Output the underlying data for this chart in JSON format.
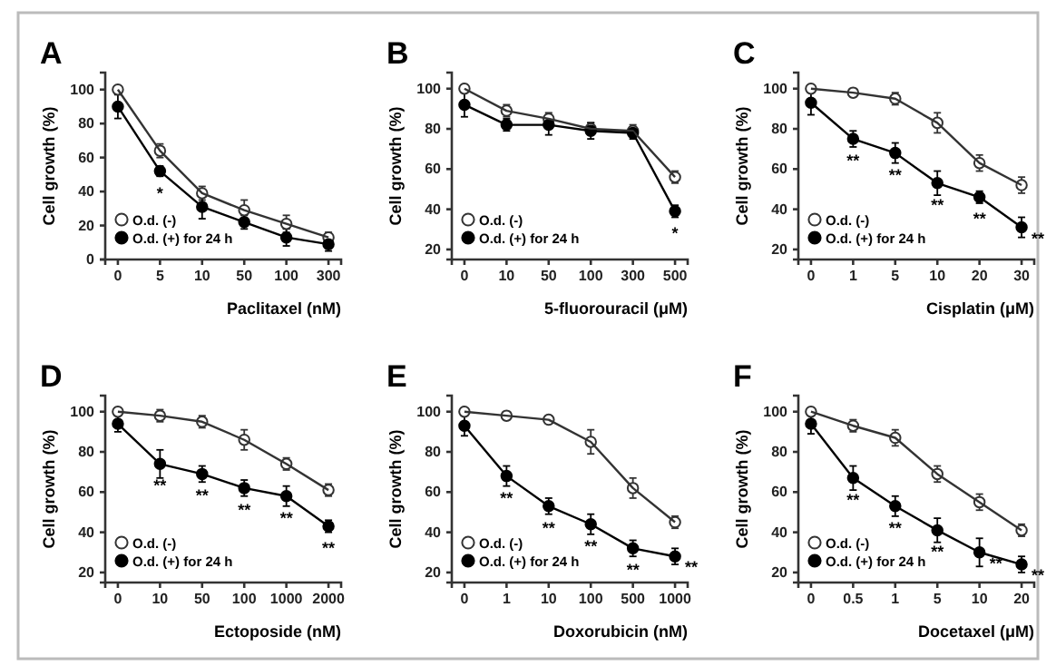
{
  "chart_data": [
    {
      "type": "line",
      "title": "A",
      "ylabel": "Cell growth (%)",
      "xlabel": "Paclitaxel (nM)",
      "categories": [
        "0",
        "5",
        "10",
        "50",
        "100",
        "300"
      ],
      "ylim": [
        0,
        110
      ],
      "yticks": [
        0,
        20,
        40,
        60,
        80,
        100
      ],
      "legend": "bottom left",
      "marker": "circle",
      "line_style": "solid",
      "grid": false,
      "series": [
        {
          "name": "O.d. (-)",
          "color": "#333333",
          "values": [
            100,
            64,
            39,
            29,
            21,
            13
          ],
          "errors": [
            2,
            4,
            4,
            6,
            5,
            3
          ]
        },
        {
          "name": "O.d. (+) for 24 h",
          "color": "#000000",
          "values": [
            90,
            52,
            31,
            22,
            13,
            9
          ],
          "errors": [
            7,
            3,
            7,
            4,
            5,
            4
          ]
        }
      ],
      "annotations": [
        {
          "text": "*",
          "x": "5",
          "y": 52
        }
      ]
    },
    {
      "type": "line",
      "title": "B",
      "ylabel": "Cell growth (%)",
      "xlabel": "5-fluorouracil (μM)",
      "categories": [
        "0",
        "10",
        "50",
        "100",
        "300",
        "500"
      ],
      "ylim": [
        15,
        108
      ],
      "yticks": [
        20,
        40,
        60,
        80,
        100
      ],
      "legend": "bottom left",
      "marker": "circle",
      "line_style": "solid",
      "grid": false,
      "series": [
        {
          "name": "O.d. (-)",
          "color": "#333333",
          "values": [
            100,
            89,
            85,
            80,
            79,
            56
          ],
          "errors": [
            2,
            3,
            3,
            3,
            3,
            3
          ]
        },
        {
          "name": "O.d. (+) for 24 h",
          "color": "#000000",
          "values": [
            92,
            82,
            82,
            79,
            78,
            39
          ],
          "errors": [
            6,
            3,
            5,
            4,
            3,
            3
          ]
        }
      ],
      "annotations": [
        {
          "text": "*",
          "x": "500",
          "y": 39
        }
      ]
    },
    {
      "type": "line",
      "title": "C",
      "ylabel": "Cell growth (%)",
      "xlabel": "Cisplatin (μM)",
      "categories": [
        "0",
        "1",
        "5",
        "10",
        "20",
        "30"
      ],
      "ylim": [
        15,
        108
      ],
      "yticks": [
        20,
        40,
        60,
        80,
        100
      ],
      "legend": "bottom left",
      "marker": "circle",
      "line_style": "solid",
      "grid": false,
      "series": [
        {
          "name": "O.d. (-)",
          "color": "#333333",
          "values": [
            100,
            98,
            95,
            83,
            63,
            52
          ],
          "errors": [
            1,
            2,
            3,
            5,
            4,
            4
          ]
        },
        {
          "name": "O.d. (+) for 24 h",
          "color": "#000000",
          "values": [
            93,
            75,
            68,
            53,
            46,
            31
          ],
          "errors": [
            6,
            4,
            5,
            6,
            3,
            5
          ]
        }
      ],
      "annotations": [
        {
          "text": "**",
          "x": "1",
          "y": 75
        },
        {
          "text": "**",
          "x": "5",
          "y": 68
        },
        {
          "text": "**",
          "x": "10",
          "y": 53
        },
        {
          "text": "**",
          "x": "20",
          "y": 46
        },
        {
          "text": "**",
          "x": "30",
          "y": 31
        }
      ]
    },
    {
      "type": "line",
      "title": "D",
      "ylabel": "Cell growth (%)",
      "xlabel": "Ectoposide (nM)",
      "categories": [
        "0",
        "10",
        "50",
        "100",
        "1000",
        "2000"
      ],
      "ylim": [
        15,
        108
      ],
      "yticks": [
        20,
        40,
        60,
        80,
        100
      ],
      "legend": "bottom left",
      "marker": "circle",
      "line_style": "solid",
      "grid": false,
      "series": [
        {
          "name": "O.d. (-)",
          "color": "#333333",
          "values": [
            100,
            98,
            95,
            86,
            74,
            61
          ],
          "errors": [
            2,
            3,
            3,
            5,
            3,
            3
          ]
        },
        {
          "name": "O.d. (+) for 24 h",
          "color": "#000000",
          "values": [
            94,
            74,
            69,
            62,
            58,
            43
          ],
          "errors": [
            4,
            7,
            4,
            4,
            5,
            3
          ]
        }
      ],
      "annotations": [
        {
          "text": "**",
          "x": "10",
          "y": 74
        },
        {
          "text": "**",
          "x": "50",
          "y": 69
        },
        {
          "text": "**",
          "x": "100",
          "y": 62
        },
        {
          "text": "**",
          "x": "1000",
          "y": 58
        },
        {
          "text": "**",
          "x": "2000",
          "y": 43
        }
      ]
    },
    {
      "type": "line",
      "title": "E",
      "ylabel": "Cell growth (%)",
      "xlabel": "Doxorubicin (nM)",
      "categories": [
        "0",
        "1",
        "10",
        "100",
        "500",
        "1000"
      ],
      "ylim": [
        15,
        108
      ],
      "yticks": [
        20,
        40,
        60,
        80,
        100
      ],
      "legend": "bottom left",
      "marker": "circle",
      "line_style": "solid",
      "grid": false,
      "series": [
        {
          "name": "O.d. (-)",
          "color": "#333333",
          "values": [
            100,
            98,
            96,
            85,
            62,
            45
          ],
          "errors": [
            1,
            2,
            2,
            6,
            5,
            3
          ]
        },
        {
          "name": "O.d. (+) for 24 h",
          "color": "#000000",
          "values": [
            93,
            68,
            53,
            44,
            32,
            28
          ],
          "errors": [
            5,
            5,
            4,
            5,
            4,
            4
          ]
        }
      ],
      "annotations": [
        {
          "text": "**",
          "x": "1",
          "y": 68
        },
        {
          "text": "**",
          "x": "10",
          "y": 53
        },
        {
          "text": "**",
          "x": "100",
          "y": 44
        },
        {
          "text": "**",
          "x": "500",
          "y": 32
        },
        {
          "text": "**",
          "x": "1000",
          "y": 28
        }
      ]
    },
    {
      "type": "line",
      "title": "F",
      "ylabel": "Cell growth (%)",
      "xlabel": "Docetaxel (μM)",
      "categories": [
        "0",
        "0.5",
        "1",
        "5",
        "10",
        "20"
      ],
      "ylim": [
        15,
        108
      ],
      "yticks": [
        20,
        40,
        60,
        80,
        100
      ],
      "legend": "bottom left",
      "marker": "circle",
      "line_style": "solid",
      "grid": false,
      "series": [
        {
          "name": "O.d. (-)",
          "color": "#333333",
          "values": [
            100,
            93,
            87,
            69,
            55,
            41
          ],
          "errors": [
            2,
            3,
            4,
            4,
            4,
            3
          ]
        },
        {
          "name": "O.d. (+) for 24 h",
          "color": "#000000",
          "values": [
            94,
            67,
            53,
            41,
            30,
            24
          ],
          "errors": [
            5,
            6,
            5,
            6,
            7,
            4
          ]
        }
      ],
      "annotations": [
        {
          "text": "**",
          "x": "0.5",
          "y": 67
        },
        {
          "text": "**",
          "x": "1",
          "y": 53
        },
        {
          "text": "**",
          "x": "5",
          "y": 41
        },
        {
          "text": "**",
          "x": "10",
          "y": 30
        },
        {
          "text": "**",
          "x": "20",
          "y": 24
        }
      ]
    }
  ]
}
